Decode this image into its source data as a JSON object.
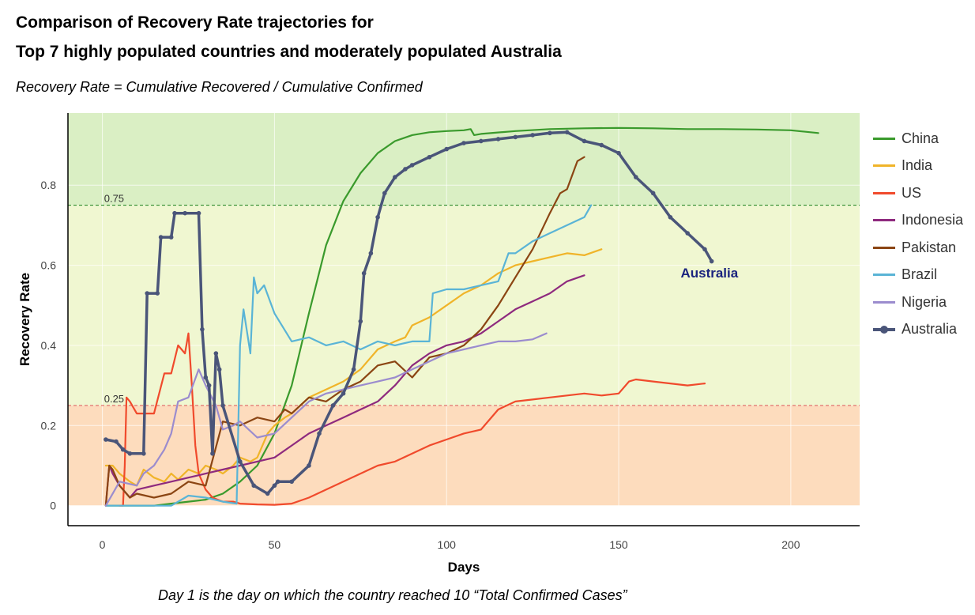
{
  "title_line1": "Comparison of Recovery Rate trajectories for",
  "title_line2": "Top 7 highly populated countries and moderately populated Australia",
  "subtitle": "Recovery Rate = Cumulative Recovered / Cumulative Confirmed",
  "caption": "Day 1 is the day on which the country reached 10 “Total Confirmed Cases”",
  "chart_data": {
    "type": "line",
    "xlabel": "Days",
    "ylabel": "Recovery Rate",
    "xlim": [
      -10,
      220
    ],
    "ylim": [
      -0.05,
      0.98
    ],
    "xticks": [
      0,
      50,
      100,
      150,
      200
    ],
    "yticks": [
      0,
      0.2,
      0.4,
      0.6,
      0.8
    ],
    "bands": [
      {
        "from": 0,
        "to": 0.25,
        "color": "#fddcbd"
      },
      {
        "from": 0.25,
        "to": 0.75,
        "color": "#f0f7d1"
      },
      {
        "from": 0.75,
        "to": 0.98,
        "color": "#daefc4"
      }
    ],
    "reference_lines": [
      {
        "y": 0.75,
        "label": "0.75",
        "color": "#2e8b2e"
      },
      {
        "y": 0.25,
        "label": "0.25",
        "color": "#e06666"
      }
    ],
    "annotations": [
      {
        "text": "Australia",
        "x": 168,
        "y": 0.57,
        "color": "#1a237e"
      }
    ],
    "legend_position": "right",
    "grid": true,
    "series": [
      {
        "name": "China",
        "color": "#3a9a2c",
        "x": [
          1,
          5,
          10,
          15,
          20,
          25,
          30,
          35,
          40,
          45,
          50,
          55,
          60,
          65,
          70,
          75,
          80,
          85,
          90,
          95,
          100,
          105,
          107,
          108,
          110,
          120,
          130,
          140,
          150,
          160,
          170,
          180,
          190,
          200,
          208
        ],
        "y": [
          0,
          0,
          0,
          0,
          0.005,
          0.01,
          0.015,
          0.03,
          0.06,
          0.1,
          0.18,
          0.3,
          0.48,
          0.65,
          0.76,
          0.83,
          0.88,
          0.91,
          0.925,
          0.932,
          0.935,
          0.937,
          0.94,
          0.925,
          0.928,
          0.935,
          0.94,
          0.942,
          0.943,
          0.942,
          0.94,
          0.94,
          0.939,
          0.937,
          0.93
        ]
      },
      {
        "name": "India",
        "color": "#f0b429",
        "x": [
          1,
          3,
          5,
          8,
          10,
          12,
          15,
          18,
          20,
          22,
          25,
          28,
          30,
          33,
          35,
          38,
          40,
          43,
          45,
          48,
          50,
          53,
          55,
          60,
          65,
          70,
          75,
          80,
          85,
          88,
          90,
          95,
          100,
          105,
          110,
          115,
          120,
          125,
          130,
          135,
          140,
          145
        ],
        "y": [
          0.1,
          0.1,
          0.08,
          0.06,
          0.05,
          0.09,
          0.07,
          0.06,
          0.08,
          0.065,
          0.09,
          0.08,
          0.1,
          0.09,
          0.08,
          0.1,
          0.12,
          0.11,
          0.12,
          0.18,
          0.2,
          0.22,
          0.23,
          0.27,
          0.29,
          0.31,
          0.34,
          0.39,
          0.41,
          0.42,
          0.45,
          0.47,
          0.5,
          0.53,
          0.55,
          0.58,
          0.6,
          0.61,
          0.62,
          0.63,
          0.625,
          0.64
        ]
      },
      {
        "name": "US",
        "color": "#f04a2c",
        "x": [
          5,
          6,
          6.5,
          7,
          8,
          10,
          12,
          15,
          18,
          20,
          22,
          24,
          25,
          26,
          27,
          28,
          30,
          32,
          35,
          38,
          40,
          45,
          50,
          55,
          60,
          65,
          70,
          75,
          80,
          85,
          90,
          95,
          100,
          105,
          110,
          115,
          120,
          125,
          130,
          135,
          140,
          145,
          150,
          153,
          155,
          160,
          165,
          170,
          175
        ],
        "y": [
          0,
          0,
          0.1,
          0.27,
          0.26,
          0.23,
          0.23,
          0.23,
          0.33,
          0.33,
          0.4,
          0.38,
          0.43,
          0.3,
          0.15,
          0.08,
          0.04,
          0.02,
          0.01,
          0.01,
          0.005,
          0.003,
          0.002,
          0.005,
          0.02,
          0.04,
          0.06,
          0.08,
          0.1,
          0.11,
          0.13,
          0.15,
          0.165,
          0.18,
          0.19,
          0.24,
          0.26,
          0.265,
          0.27,
          0.275,
          0.28,
          0.275,
          0.28,
          0.31,
          0.315,
          0.31,
          0.305,
          0.3,
          0.305
        ]
      },
      {
        "name": "Indonesia",
        "color": "#8e2a7e",
        "x": [
          1,
          2,
          3,
          5,
          8,
          10,
          15,
          20,
          25,
          30,
          35,
          40,
          45,
          50,
          55,
          60,
          65,
          70,
          75,
          80,
          85,
          90,
          95,
          100,
          105,
          110,
          115,
          120,
          125,
          130,
          135,
          140
        ],
        "y": [
          0,
          0.1,
          0.08,
          0.05,
          0.02,
          0.04,
          0.05,
          0.06,
          0.07,
          0.08,
          0.09,
          0.1,
          0.11,
          0.12,
          0.15,
          0.18,
          0.2,
          0.22,
          0.24,
          0.26,
          0.3,
          0.35,
          0.38,
          0.4,
          0.41,
          0.43,
          0.46,
          0.49,
          0.51,
          0.53,
          0.56,
          0.575
        ]
      },
      {
        "name": "Pakistan",
        "color": "#8b4513",
        "x": [
          1,
          2,
          3,
          5,
          8,
          10,
          15,
          20,
          25,
          30,
          35,
          40,
          45,
          50,
          53,
          55,
          60,
          65,
          70,
          75,
          80,
          85,
          90,
          95,
          100,
          105,
          110,
          115,
          120,
          125,
          130,
          133,
          135,
          138,
          140
        ],
        "y": [
          0,
          0.1,
          0.09,
          0.05,
          0.02,
          0.03,
          0.02,
          0.03,
          0.06,
          0.05,
          0.21,
          0.2,
          0.22,
          0.21,
          0.24,
          0.23,
          0.27,
          0.26,
          0.29,
          0.31,
          0.35,
          0.36,
          0.32,
          0.37,
          0.38,
          0.4,
          0.44,
          0.5,
          0.57,
          0.64,
          0.73,
          0.78,
          0.79,
          0.86,
          0.87
        ]
      },
      {
        "name": "Brazil",
        "color": "#5ab4d6",
        "x": [
          1,
          10,
          20,
          25,
          30,
          35,
          39,
          40,
          41,
          43,
          44,
          45,
          47,
          50,
          55,
          60,
          65,
          70,
          75,
          80,
          85,
          90,
          95,
          96,
          100,
          105,
          110,
          115,
          118,
          120,
          125,
          130,
          135,
          140,
          142
        ],
        "y": [
          0,
          0,
          0,
          0.025,
          0.02,
          0.01,
          0.005,
          0.4,
          0.49,
          0.38,
          0.57,
          0.53,
          0.55,
          0.48,
          0.41,
          0.42,
          0.4,
          0.41,
          0.39,
          0.41,
          0.4,
          0.41,
          0.41,
          0.53,
          0.54,
          0.54,
          0.55,
          0.56,
          0.63,
          0.63,
          0.66,
          0.68,
          0.7,
          0.72,
          0.75
        ]
      },
      {
        "name": "Nigeria",
        "color": "#9b8cce",
        "x": [
          1,
          5,
          10,
          12,
          15,
          18,
          20,
          22,
          25,
          28,
          30,
          33,
          35,
          38,
          40,
          45,
          50,
          55,
          60,
          65,
          70,
          75,
          80,
          85,
          90,
          95,
          100,
          105,
          110,
          115,
          120,
          125,
          129
        ],
        "y": [
          0,
          0.06,
          0.05,
          0.08,
          0.1,
          0.14,
          0.18,
          0.26,
          0.27,
          0.34,
          0.3,
          0.25,
          0.19,
          0.2,
          0.21,
          0.17,
          0.18,
          0.22,
          0.26,
          0.28,
          0.29,
          0.3,
          0.31,
          0.32,
          0.34,
          0.36,
          0.38,
          0.39,
          0.4,
          0.41,
          0.41,
          0.415,
          0.43
        ]
      },
      {
        "name": "Australia",
        "color": "#4a5579",
        "marker": true,
        "x": [
          1,
          4,
          6,
          8,
          12,
          13,
          16,
          17,
          20,
          21,
          24,
          28,
          29,
          30,
          31,
          32,
          33,
          34,
          35,
          40,
          44,
          48,
          50,
          51,
          55,
          60,
          63,
          67,
          70,
          73,
          75,
          76,
          78,
          80,
          82,
          85,
          88,
          90,
          95,
          100,
          105,
          110,
          115,
          120,
          125,
          130,
          135,
          140,
          145,
          150,
          155,
          160,
          165,
          170,
          175,
          177
        ],
        "y": [
          0.165,
          0.16,
          0.14,
          0.13,
          0.13,
          0.53,
          0.53,
          0.67,
          0.67,
          0.73,
          0.73,
          0.73,
          0.44,
          0.32,
          0.3,
          0.13,
          0.38,
          0.34,
          0.25,
          0.11,
          0.05,
          0.03,
          0.05,
          0.06,
          0.06,
          0.1,
          0.18,
          0.25,
          0.28,
          0.34,
          0.46,
          0.58,
          0.63,
          0.72,
          0.78,
          0.82,
          0.84,
          0.85,
          0.87,
          0.89,
          0.905,
          0.91,
          0.915,
          0.92,
          0.925,
          0.93,
          0.932,
          0.91,
          0.9,
          0.88,
          0.82,
          0.78,
          0.72,
          0.68,
          0.64,
          0.61
        ]
      }
    ]
  }
}
